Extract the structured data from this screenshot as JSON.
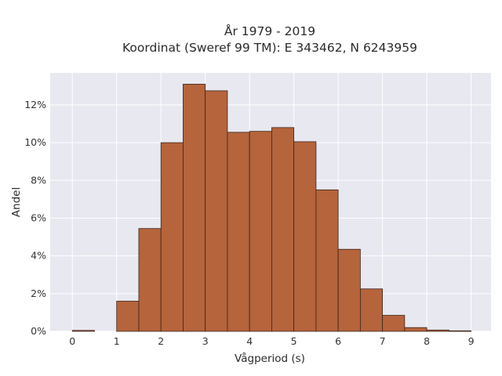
{
  "chart_data": {
    "type": "bar",
    "title": "År 1979 - 2019",
    "subtitle": "Koordinat (Sweref 99 TM): E 343462, N 6243959",
    "xlabel": "Vågperiod (s)",
    "ylabel": "Andel",
    "bin_width": 0.5,
    "bin_starts": [
      0,
      0.5,
      1,
      1.5,
      2,
      2.5,
      3,
      3.5,
      4,
      4.5,
      5,
      5.5,
      6,
      6.5,
      7,
      7.5,
      8,
      8.5
    ],
    "values": [
      0.05,
      0,
      1.6,
      5.45,
      10.0,
      13.1,
      12.75,
      10.55,
      10.6,
      10.8,
      10.05,
      7.5,
      4.35,
      2.25,
      0.85,
      0.2,
      0.07,
      0.03
    ],
    "xlim": [
      -0.5,
      9.45
    ],
    "ylim": [
      0,
      13.7
    ],
    "x_ticks": [
      0,
      1,
      2,
      3,
      4,
      5,
      6,
      7,
      8,
      9
    ],
    "y_ticks": [
      0,
      2,
      4,
      6,
      8,
      10,
      12
    ],
    "y_tick_format": "percent",
    "grid": true,
    "bar_color": "#b5643c",
    "bar_edge_color": "#3d2418",
    "plot_background": "#e8e8f0"
  }
}
